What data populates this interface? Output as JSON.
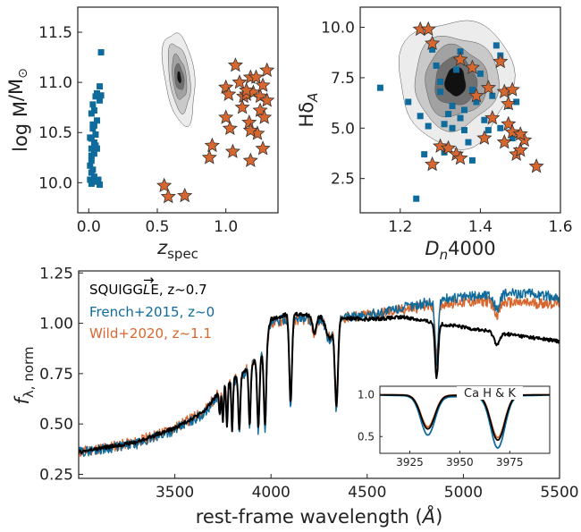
{
  "colors": {
    "blue": "#0e6b9c",
    "orange": "#d8672f",
    "black": "#000000",
    "contour_levels": [
      "#ececec",
      "#c9c9c9",
      "#a2a2a2",
      "#707070",
      "#111111"
    ]
  },
  "chart_data": [
    {
      "id": "mass_vs_z",
      "type": "scatter",
      "xlabel": "z",
      "xlabel_sub": "spec",
      "ylabel": "log M",
      "ylabel_rest": "/M",
      "ylabel_sun": "⊙",
      "xlim": [
        -0.08,
        1.38
      ],
      "ylim": [
        9.7,
        11.75
      ],
      "xticks": [
        {
          "v": 0.0,
          "t": "0.0"
        },
        {
          "v": 0.5,
          "t": "0.5"
        },
        {
          "v": 1.0,
          "t": "1.0"
        }
      ],
      "yticks": [
        {
          "v": 10.0,
          "t": "10.0"
        },
        {
          "v": 10.5,
          "t": "10.5"
        },
        {
          "v": 11.0,
          "t": "11.0"
        },
        {
          "v": 11.5,
          "t": "11.5"
        }
      ],
      "contour": {
        "center": [
          0.66,
          11.05
        ],
        "levels": [
          {
            "rx": 0.11,
            "ry": 0.46
          },
          {
            "rx": 0.075,
            "ry": 0.34
          },
          {
            "rx": 0.05,
            "ry": 0.22
          },
          {
            "rx": 0.033,
            "ry": 0.13
          },
          {
            "rx": 0.014,
            "ry": 0.06
          }
        ]
      },
      "series": [
        {
          "marker": "square",
          "points": [
            [
              0.09,
              11.3
            ],
            [
              0.08,
              10.96
            ],
            [
              0.06,
              10.89
            ],
            [
              0.03,
              10.78
            ],
            [
              0.05,
              10.86
            ],
            [
              0.08,
              10.82
            ],
            [
              0.04,
              10.72
            ],
            [
              0.02,
              10.69
            ],
            [
              0.06,
              10.62
            ],
            [
              0.04,
              10.57
            ],
            [
              0.03,
              10.54
            ],
            [
              0.05,
              10.48
            ],
            [
              0.02,
              10.44
            ],
            [
              0.04,
              10.4
            ],
            [
              0.05,
              10.37
            ],
            [
              0.02,
              10.34
            ],
            [
              0.04,
              10.29
            ],
            [
              0.02,
              10.22
            ],
            [
              0.01,
              10.17
            ],
            [
              0.03,
              10.13
            ],
            [
              0.02,
              10.1
            ],
            [
              0.04,
              10.06
            ],
            [
              0.01,
              10.03
            ],
            [
              0.02,
              9.99
            ],
            [
              0.05,
              10.01
            ],
            [
              0.07,
              10.03
            ],
            [
              0.08,
              9.98
            ],
            [
              0.09,
              10.87
            ],
            [
              0.03,
              10.58
            ],
            [
              0.06,
              10.34
            ],
            [
              0.01,
              10.45
            ],
            [
              0.02,
              10.27
            ]
          ]
        },
        {
          "marker": "star",
          "points": [
            [
              0.55,
              9.97
            ],
            [
              0.58,
              9.86
            ],
            [
              0.7,
              9.87
            ],
            [
              0.88,
              10.25
            ],
            [
              0.9,
              10.37
            ],
            [
              1.0,
              10.65
            ],
            [
              1.0,
              10.95
            ],
            [
              1.02,
              10.88
            ],
            [
              1.03,
              10.54
            ],
            [
              1.07,
              11.17
            ],
            [
              1.05,
              10.31
            ],
            [
              1.1,
              11.0
            ],
            [
              1.12,
              10.75
            ],
            [
              1.13,
              10.86
            ],
            [
              1.15,
              10.88
            ],
            [
              1.17,
              10.6
            ],
            [
              1.18,
              10.22
            ],
            [
              1.18,
              11.05
            ],
            [
              1.2,
              10.9
            ],
            [
              1.22,
              11.05
            ],
            [
              1.25,
              10.72
            ],
            [
              1.25,
              10.86
            ],
            [
              1.27,
              10.97
            ],
            [
              1.28,
              10.65
            ],
            [
              1.3,
              11.12
            ],
            [
              1.23,
              10.49
            ],
            [
              1.15,
              10.92
            ],
            [
              1.3,
              10.82
            ],
            [
              1.27,
              10.34
            ],
            [
              1.18,
              10.52
            ]
          ]
        }
      ]
    },
    {
      "id": "hdelta_vs_dn4000",
      "type": "scatter",
      "xlabel": "D",
      "xlabel_sub": "n",
      "xlabel_rest": "4000",
      "ylabel": "Hδ",
      "ylabel_sub": "A",
      "xlim": [
        1.1,
        1.6
      ],
      "ylim": [
        0.8,
        11.0
      ],
      "xticks": [
        {
          "v": 1.2,
          "t": "1.2"
        },
        {
          "v": 1.4,
          "t": "1.4"
        },
        {
          "v": 1.6,
          "t": "1.6"
        }
      ],
      "yticks": [
        {
          "v": 2.5,
          "t": "2.5"
        },
        {
          "v": 5.0,
          "t": "5.0"
        },
        {
          "v": 7.5,
          "t": "7.5"
        },
        {
          "v": 10.0,
          "t": "10.0"
        }
      ],
      "contour": {
        "center": [
          1.338,
          7.3
        ],
        "levels": [
          {
            "rx": 0.142,
            "ry": 3.15
          },
          {
            "rx": 0.105,
            "ry": 2.3
          },
          {
            "rx": 0.078,
            "ry": 1.75
          },
          {
            "rx": 0.052,
            "ry": 1.2
          },
          {
            "rx": 0.026,
            "ry": 0.72
          }
        ]
      },
      "series": [
        {
          "marker": "square",
          "points": [
            [
              1.15,
              7.0
            ],
            [
              1.24,
              1.5
            ],
            [
              1.22,
              6.3
            ],
            [
              1.25,
              5.6
            ],
            [
              1.27,
              5.1
            ],
            [
              1.28,
              8.9
            ],
            [
              1.29,
              8.1
            ],
            [
              1.3,
              6.8
            ],
            [
              1.31,
              5.2
            ],
            [
              1.31,
              3.8
            ],
            [
              1.32,
              5.7
            ],
            [
              1.33,
              6.1
            ],
            [
              1.33,
              5.0
            ],
            [
              1.34,
              7.9
            ],
            [
              1.35,
              8.8
            ],
            [
              1.35,
              5.5
            ],
            [
              1.36,
              5.9
            ],
            [
              1.37,
              4.3
            ],
            [
              1.38,
              6.9
            ],
            [
              1.38,
              3.4
            ],
            [
              1.39,
              6.3
            ],
            [
              1.4,
              7.7
            ],
            [
              1.41,
              5.4
            ],
            [
              1.42,
              4.9
            ],
            [
              1.43,
              6.6
            ],
            [
              1.45,
              5.0
            ],
            [
              1.45,
              8.6
            ],
            [
              1.47,
              6.1
            ],
            [
              1.48,
              4.5
            ],
            [
              1.49,
              6.3
            ],
            [
              1.44,
              9.1
            ],
            [
              1.3,
              7.3
            ],
            [
              1.36,
              4.9
            ],
            [
              1.26,
              3.7
            ]
          ]
        },
        {
          "marker": "star",
          "points": [
            [
              1.25,
              9.9
            ],
            [
              1.27,
              9.9
            ],
            [
              1.28,
              9.2
            ],
            [
              1.28,
              3.2
            ],
            [
              1.3,
              4.1
            ],
            [
              1.32,
              4.0
            ],
            [
              1.34,
              3.7
            ],
            [
              1.35,
              3.5
            ],
            [
              1.38,
              8.0
            ],
            [
              1.41,
              4.5
            ],
            [
              1.43,
              5.5
            ],
            [
              1.45,
              8.3
            ],
            [
              1.46,
              4.3
            ],
            [
              1.47,
              5.2
            ],
            [
              1.48,
              4.8
            ],
            [
              1.49,
              3.7
            ],
            [
              1.5,
              3.9
            ],
            [
              1.51,
              4.4
            ],
            [
              1.54,
              3.1
            ],
            [
              1.47,
              6.2
            ],
            [
              1.42,
              7.0
            ],
            [
              1.39,
              6.6
            ],
            [
              1.46,
              6.8
            ],
            [
              1.48,
              6.9
            ],
            [
              1.35,
              8.4
            ],
            [
              1.5,
              4.7
            ]
          ]
        }
      ]
    },
    {
      "id": "spectra",
      "type": "line",
      "xlabel": "rest-frame wavelength (",
      "xlabel_unit": "Å",
      "xlabel_close": ")",
      "ylabel": "f",
      "ylabel_sub": "λ, norm",
      "xlim": [
        3000,
        5500
      ],
      "ylim": [
        0.23,
        1.26
      ],
      "xticks": [
        {
          "v": 3500,
          "t": "3500"
        },
        {
          "v": 4000,
          "t": "4000"
        },
        {
          "v": 4500,
          "t": "4500"
        },
        {
          "v": 5000,
          "t": "5000"
        },
        {
          "v": 5500,
          "t": "5500"
        }
      ],
      "yticks": [
        {
          "v": 0.25,
          "t": "0.25"
        },
        {
          "v": 0.5,
          "t": "0.50"
        },
        {
          "v": 0.75,
          "t": "0.75"
        },
        {
          "v": 1.0,
          "t": "1.00"
        },
        {
          "v": 1.25,
          "t": "1.25"
        }
      ],
      "legend": [
        {
          "label": "SQUIGG",
          "label_l": "L",
          "label_arrow": "→",
          "label_end": "E, z~0.7",
          "color": "#000000"
        },
        {
          "label": "French+2015, z~0",
          "color": "#0e6b9c"
        },
        {
          "label": "Wild+2020, z~1.1",
          "color": "#d8672f"
        }
      ],
      "continuum": {
        "black": [
          [
            3000,
            0.36
          ],
          [
            3300,
            0.41
          ],
          [
            3500,
            0.48
          ],
          [
            3650,
            0.56
          ],
          [
            3700,
            0.62
          ],
          [
            3760,
            0.7
          ],
          [
            3840,
            0.74
          ],
          [
            3900,
            0.8
          ],
          [
            3960,
            0.86
          ],
          [
            4000,
            1.02
          ],
          [
            4100,
            1.05
          ],
          [
            4300,
            1.03
          ],
          [
            4500,
            1.02
          ],
          [
            4700,
            1.03
          ],
          [
            4860,
            1.0
          ],
          [
            5000,
            0.98
          ],
          [
            5200,
            0.95
          ],
          [
            5500,
            0.91
          ]
        ],
        "blue": [
          [
            3000,
            0.36
          ],
          [
            3300,
            0.4
          ],
          [
            3500,
            0.47
          ],
          [
            3650,
            0.55
          ],
          [
            3700,
            0.61
          ],
          [
            3760,
            0.69
          ],
          [
            3840,
            0.73
          ],
          [
            3900,
            0.79
          ],
          [
            3960,
            0.86
          ],
          [
            4000,
            1.0
          ],
          [
            4100,
            1.03
          ],
          [
            4300,
            1.02
          ],
          [
            4500,
            1.04
          ],
          [
            4700,
            1.08
          ],
          [
            4900,
            1.12
          ],
          [
            5100,
            1.14
          ],
          [
            5300,
            1.15
          ],
          [
            5500,
            1.13
          ]
        ],
        "orange": [
          [
            3000,
            0.36
          ],
          [
            3300,
            0.41
          ],
          [
            3500,
            0.48
          ],
          [
            3650,
            0.56
          ],
          [
            3700,
            0.62
          ],
          [
            3760,
            0.7
          ],
          [
            3840,
            0.74
          ],
          [
            3900,
            0.8
          ],
          [
            3960,
            0.86
          ],
          [
            4000,
            1.0
          ],
          [
            4100,
            1.02
          ],
          [
            4300,
            1.02
          ],
          [
            4500,
            1.04
          ],
          [
            4700,
            1.07
          ],
          [
            4900,
            1.1
          ],
          [
            5100,
            1.11
          ],
          [
            5300,
            1.1
          ],
          [
            5500,
            1.1
          ]
        ]
      },
      "absorption_lines": [
        {
          "w": 3734,
          "d": 0.18,
          "s": 4
        },
        {
          "w": 3750,
          "d": 0.25,
          "s": 4
        },
        {
          "w": 3771,
          "d": 0.32,
          "s": 4
        },
        {
          "w": 3798,
          "d": 0.35,
          "s": 4
        },
        {
          "w": 3835,
          "d": 0.36,
          "s": 5
        },
        {
          "w": 3889,
          "d": 0.38,
          "s": 5
        },
        {
          "w": 3934,
          "d": 0.42,
          "s": 6
        },
        {
          "w": 3969,
          "d": 0.45,
          "s": 6
        },
        {
          "w": 4102,
          "d": 0.42,
          "s": 7
        },
        {
          "w": 4226,
          "d": 0.08,
          "s": 10
        },
        {
          "w": 4305,
          "d": 0.1,
          "s": 18
        },
        {
          "w": 4340,
          "d": 0.42,
          "s": 8
        },
        {
          "w": 4861,
          "d": 0.27,
          "s": 8
        },
        {
          "w": 5175,
          "d": 0.06,
          "s": 15
        }
      ],
      "inset": {
        "title": "Ca H & K",
        "xlim": [
          3910,
          3995
        ],
        "ylim": [
          0.3,
          1.1
        ],
        "xticks": [
          {
            "v": 3925,
            "t": "3925"
          },
          {
            "v": 3950,
            "t": "3950"
          },
          {
            "v": 3975,
            "t": "3975"
          }
        ],
        "yticks": [
          {
            "v": 0.5,
            "t": "0.5"
          },
          {
            "v": 1.0,
            "t": "1.0"
          }
        ],
        "lines": [
          {
            "w": 3934,
            "d": 0.45,
            "s": 3.5
          },
          {
            "w": 3969,
            "d": 0.6,
            "s": 3.5
          }
        ]
      }
    }
  ]
}
